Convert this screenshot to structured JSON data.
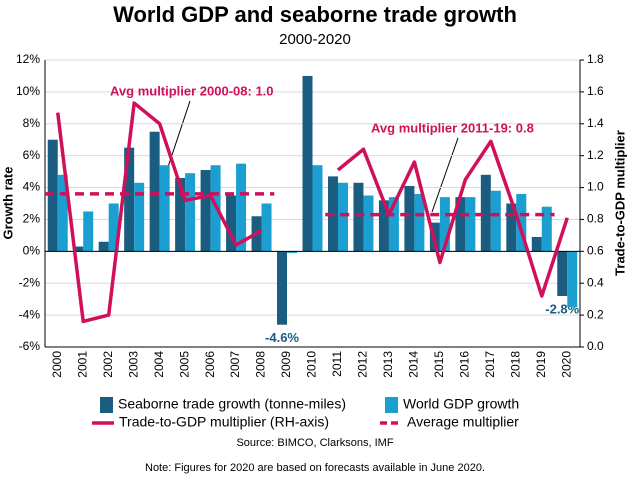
{
  "chart_data": {
    "type": "bar",
    "title": "World GDP and seaborne trade growth",
    "subtitle": "2000-2020",
    "y_label": "Growth rate",
    "y2_label": "Trade-to-GDP multiplier",
    "categories": [
      "2000",
      "2001",
      "2002",
      "2003",
      "2004",
      "2005",
      "2006",
      "2007",
      "2008",
      "2009",
      "2010",
      "2011",
      "2012",
      "2013",
      "2014",
      "2015",
      "2016",
      "2017",
      "2018",
      "2019",
      "2020"
    ],
    "series": [
      {
        "name": "Seaborne trade growth (tonne-miles)",
        "type": "bar",
        "color": "#1a5d80",
        "values": [
          7.0,
          0.3,
          0.6,
          6.5,
          7.5,
          4.6,
          5.1,
          3.5,
          2.2,
          -4.6,
          11.0,
          4.7,
          4.3,
          3.2,
          4.1,
          1.8,
          3.4,
          4.8,
          3.0,
          0.9,
          -2.8
        ],
        "value_labels": [
          null,
          null,
          null,
          null,
          null,
          null,
          null,
          null,
          null,
          "-4.6%",
          null,
          null,
          null,
          null,
          null,
          null,
          null,
          null,
          null,
          null,
          "-2.8%"
        ]
      },
      {
        "name": "World GDP growth",
        "type": "bar",
        "color": "#1a9fd0",
        "values": [
          4.8,
          2.5,
          3.0,
          4.3,
          5.4,
          4.9,
          5.4,
          5.5,
          3.0,
          -0.1,
          5.4,
          4.3,
          3.5,
          3.4,
          3.6,
          3.4,
          3.4,
          3.8,
          3.6,
          2.8,
          -3.5
        ]
      },
      {
        "name": "Trade-to-GDP multiplier (RH-axis)",
        "type": "line",
        "axis": "y2",
        "color": "#d0105a",
        "dash": false,
        "values": [
          1.47,
          0.16,
          0.2,
          1.53,
          1.4,
          0.92,
          0.95,
          0.64,
          0.73,
          null,
          null,
          1.11,
          1.24,
          0.83,
          1.16,
          0.53,
          1.05,
          1.29,
          0.83,
          0.32,
          0.81
        ]
      },
      {
        "name": "Average multiplier",
        "type": "line",
        "axis": "y2",
        "color": "#d0105a",
        "dash": true,
        "values": [
          0.96,
          0.96,
          0.96,
          0.96,
          0.96,
          0.96,
          0.96,
          0.96,
          0.96,
          null,
          null,
          0.83,
          0.83,
          0.83,
          0.83,
          0.83,
          0.83,
          0.83,
          0.83,
          0.83,
          null
        ]
      }
    ],
    "annotations": [
      {
        "text": "Avg multiplier 2000-08: 1.0"
      },
      {
        "text": "Avg multiplier 2011-19: 0.8"
      }
    ],
    "ylim": [
      -6,
      12
    ],
    "yticks": [
      {
        "value": -6,
        "label": "-6%"
      },
      {
        "value": -4,
        "label": "-4%"
      },
      {
        "value": -2,
        "label": "-2%"
      },
      {
        "value": 0,
        "label": "0%"
      },
      {
        "value": 2,
        "label": "2%"
      },
      {
        "value": 4,
        "label": "4%"
      },
      {
        "value": 6,
        "label": "6%"
      },
      {
        "value": 8,
        "label": "8%"
      },
      {
        "value": 10,
        "label": "10%"
      },
      {
        "value": 12,
        "label": "12%"
      }
    ],
    "y2lim": [
      0,
      1.8
    ],
    "y2ticks": [
      {
        "value": 0,
        "label": "0.0"
      },
      {
        "value": 0.2,
        "label": "0.2"
      },
      {
        "value": 0.4,
        "label": "0.4"
      },
      {
        "value": 0.6,
        "label": "0.6"
      },
      {
        "value": 0.8,
        "label": "0.8"
      },
      {
        "value": 1,
        "label": "1.0"
      },
      {
        "value": 1.2,
        "label": "1.2"
      },
      {
        "value": 1.4,
        "label": "1.4"
      },
      {
        "value": 1.6,
        "label": "1.6"
      },
      {
        "value": 1.8,
        "label": "1.8"
      }
    ],
    "grid": true,
    "source": "Source: BIMCO, Clarksons, IMF",
    "note": "Note: Figures for 2020 are based on forecasts available in June 2020."
  }
}
